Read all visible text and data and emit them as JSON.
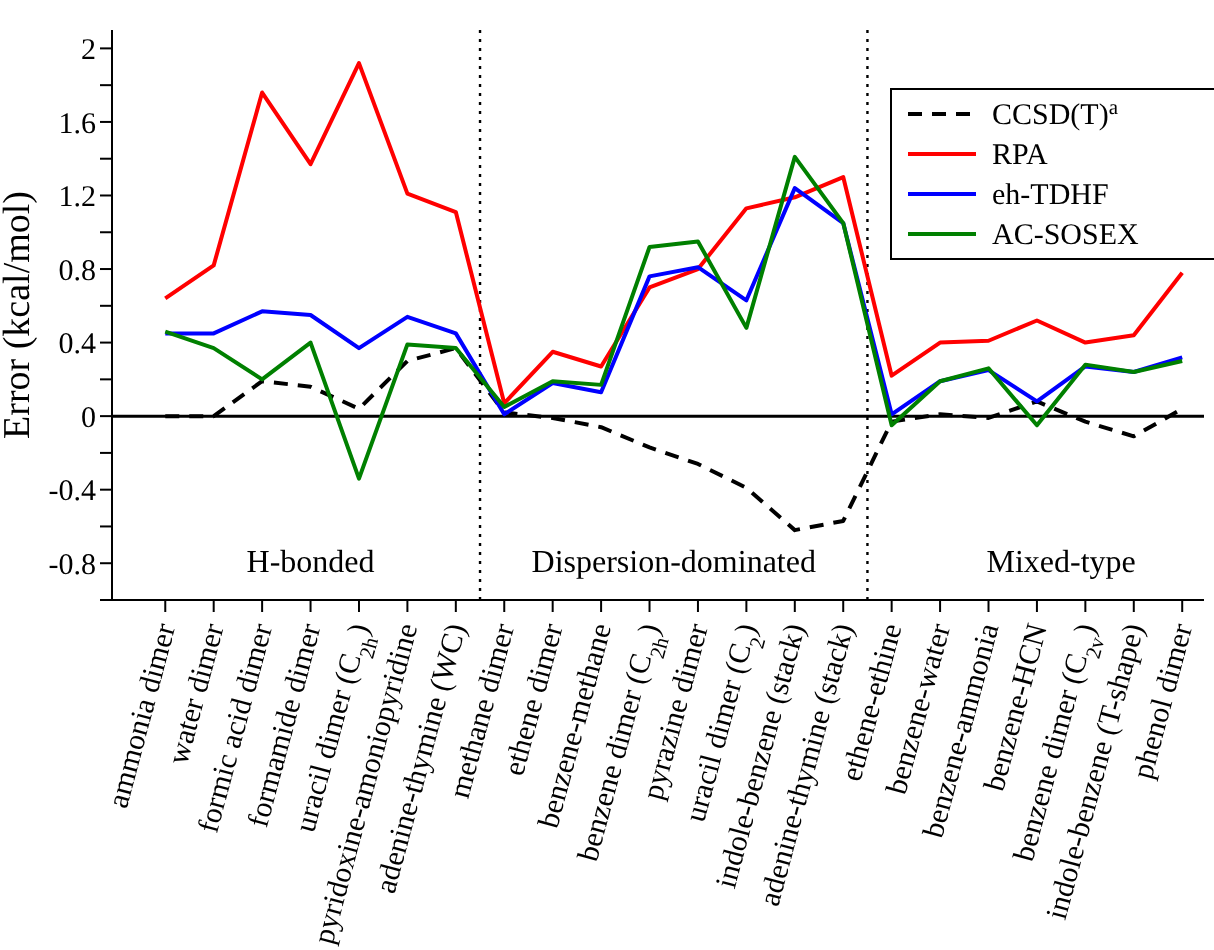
{
  "chart_data": {
    "type": "line",
    "ylabel": "Error (kcal/mol)",
    "categories": [
      "ammonia dimer",
      "water dimer",
      "formic acid dimer",
      "formamide dimer",
      "uracil dimer (C$_{2h}$)",
      "pyridoxine-amoniopyridine",
      "adenine-thymine (WC)",
      "methane dimer",
      "ethene dimer",
      "benzene-methane",
      "benzene dimer (C$_{2h}$)",
      "pyrazine dimer",
      "uracil dimer (C$_{2}$)",
      "indole-benzene (stack)",
      "adenine-thymine (stack)",
      "ethene-ethine",
      "benzene-water",
      "benzene-ammonia",
      "benzene-HCN",
      "benzene dimer (C$_{2v}$)",
      "indole-benzene (T-shape)",
      "phenol dimer"
    ],
    "series": [
      {
        "name": "CCSD(T)$^{a}$",
        "color": "#000000",
        "line_style": "dashed",
        "values": [
          0,
          0,
          0.19,
          0.16,
          0.04,
          0.3,
          0.37,
          0.02,
          -0.01,
          -0.06,
          -0.17,
          -0.26,
          -0.39,
          -0.62,
          -0.57,
          -0.03,
          0.01,
          -0.01,
          0.08,
          -0.03,
          -0.11,
          0.04
        ]
      },
      {
        "name": "RPA",
        "color": "#ff0000",
        "values": [
          0.64,
          0.82,
          1.76,
          1.37,
          1.92,
          1.21,
          1.11,
          0.07,
          0.35,
          0.27,
          0.7,
          0.8,
          1.13,
          1.19,
          1.3,
          0.22,
          0.4,
          0.41,
          0.52,
          0.4,
          0.44,
          0.78
        ]
      },
      {
        "name": "eh-TDHF",
        "color": "#0000ff",
        "values": [
          0.45,
          0.45,
          0.57,
          0.55,
          0.37,
          0.54,
          0.45,
          0.01,
          0.18,
          0.13,
          0.76,
          0.81,
          0.63,
          1.24,
          1.05,
          0.01,
          0.19,
          0.25,
          0.08,
          0.27,
          0.24,
          0.32
        ]
      },
      {
        "name": "AC-SOSEX",
        "color": "#008000",
        "values": [
          0.46,
          0.37,
          0.2,
          0.4,
          -0.34,
          0.39,
          0.37,
          0.05,
          0.19,
          0.17,
          0.92,
          0.95,
          0.48,
          1.41,
          1.05,
          -0.05,
          0.19,
          0.26,
          -0.05,
          0.28,
          0.24,
          0.3
        ]
      }
    ],
    "ylim": [
      -1,
      2.1
    ],
    "yticks": [
      {
        "value": -1,
        "label": null
      },
      -0.8,
      {
        "value": -0.6,
        "label": null
      },
      -0.4,
      {
        "value": -0.2,
        "label": null
      },
      0,
      {
        "value": 0.2,
        "label": null
      },
      0.4,
      {
        "value": 0.6,
        "label": null
      },
      0.8,
      {
        "value": 1,
        "label": null
      },
      1.2,
      {
        "value": 1.4,
        "label": null
      },
      1.6,
      {
        "value": 1.8,
        "label": null
      },
      2
    ],
    "ref_lines": [
      {
        "axis": "y",
        "value": 0,
        "color": "#000000",
        "line_style": "solid"
      }
    ],
    "annotations": [
      "H-bonded",
      "Dispersion-dominated",
      "Mixed-type"
    ],
    "legend": "top right",
    "grid": false,
    "marker": "none"
  }
}
